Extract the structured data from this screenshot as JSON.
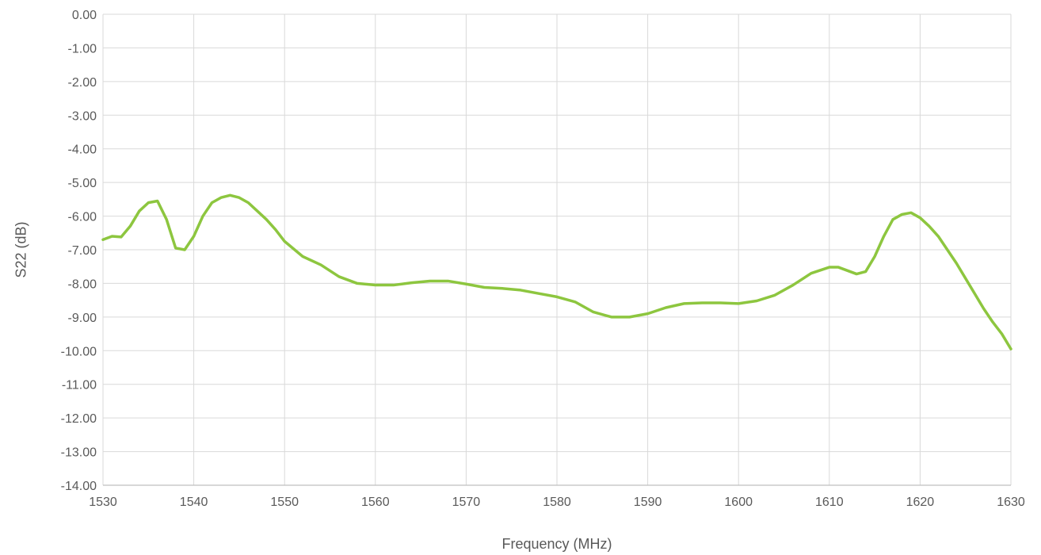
{
  "chart_data": {
    "type": "line",
    "title": "",
    "xlabel": "Frequency (MHz)",
    "ylabel": "S22 (dB)",
    "xlim": [
      1530,
      1630
    ],
    "ylim": [
      -14,
      0
    ],
    "x_ticks": [
      1530,
      1540,
      1550,
      1560,
      1570,
      1580,
      1590,
      1600,
      1610,
      1620,
      1630
    ],
    "x_tick_labels": [
      "1530",
      "1540",
      "1550",
      "1560",
      "1570",
      "1580",
      "1590",
      "1600",
      "1610",
      "1620",
      "1630"
    ],
    "y_ticks": [
      0,
      -1,
      -2,
      -3,
      -4,
      -5,
      -6,
      -7,
      -8,
      -9,
      -10,
      -11,
      -12,
      -13,
      -14
    ],
    "y_tick_labels": [
      "0.00",
      "-1.00",
      "-2.00",
      "-3.00",
      "-4.00",
      "-5.00",
      "-6.00",
      "-7.00",
      "-8.00",
      "-9.00",
      "-10.00",
      "-11.00",
      "-12.00",
      "-13.00",
      "-14.00"
    ],
    "grid": {
      "vertical": true,
      "horizontal": true
    },
    "legend": "none",
    "series": [
      {
        "color": "#8dc63f",
        "x": [
          1530,
          1531,
          1532,
          1533,
          1534,
          1535,
          1536,
          1537,
          1538,
          1539,
          1540,
          1541,
          1542,
          1543,
          1544,
          1545,
          1546,
          1547,
          1548,
          1549,
          1550,
          1552,
          1554,
          1556,
          1558,
          1560,
          1562,
          1564,
          1566,
          1568,
          1570,
          1572,
          1574,
          1576,
          1578,
          1580,
          1582,
          1584,
          1586,
          1588,
          1590,
          1592,
          1594,
          1596,
          1598,
          1600,
          1602,
          1604,
          1606,
          1608,
          1610,
          1611,
          1612,
          1613,
          1614,
          1615,
          1616,
          1617,
          1618,
          1619,
          1620,
          1621,
          1622,
          1623,
          1624,
          1625,
          1626,
          1627,
          1628,
          1629,
          1630
        ],
        "y": [
          -6.7,
          -6.6,
          -6.62,
          -6.3,
          -5.85,
          -5.6,
          -5.55,
          -6.1,
          -6.95,
          -7.0,
          -6.6,
          -6.0,
          -5.6,
          -5.45,
          -5.38,
          -5.45,
          -5.6,
          -5.85,
          -6.1,
          -6.4,
          -6.75,
          -7.2,
          -7.45,
          -7.8,
          -8.0,
          -8.05,
          -8.05,
          -7.98,
          -7.93,
          -7.93,
          -8.02,
          -8.12,
          -8.15,
          -8.2,
          -8.3,
          -8.4,
          -8.55,
          -8.85,
          -9.0,
          -9.0,
          -8.9,
          -8.72,
          -8.6,
          -8.58,
          -8.58,
          -8.6,
          -8.52,
          -8.35,
          -8.05,
          -7.7,
          -7.52,
          -7.52,
          -7.62,
          -7.72,
          -7.65,
          -7.2,
          -6.6,
          -6.1,
          -5.95,
          -5.9,
          -6.05,
          -6.3,
          -6.6,
          -7.0,
          -7.4,
          -7.85,
          -8.3,
          -8.75,
          -9.15,
          -9.5,
          -9.95
        ]
      }
    ]
  }
}
